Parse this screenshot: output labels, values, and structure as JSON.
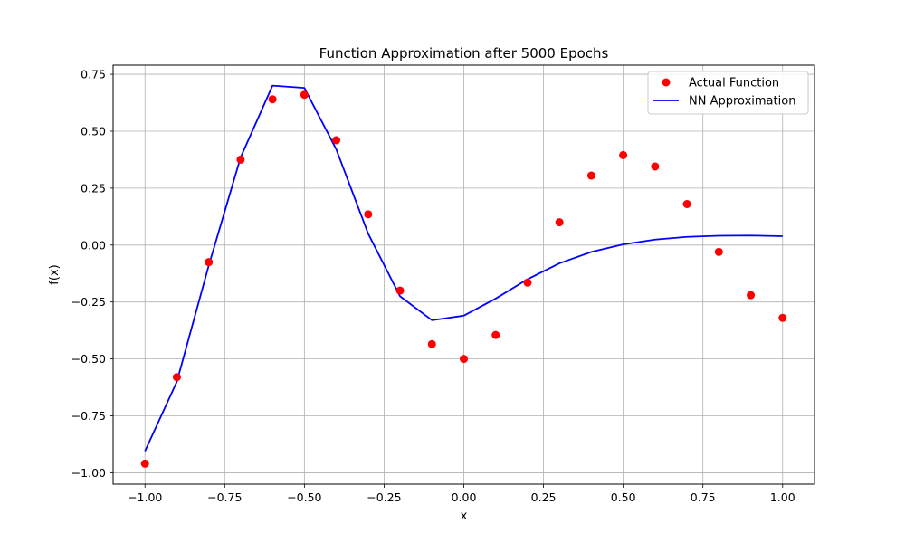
{
  "chart_data": {
    "type": "line",
    "title": "Function Approximation after 5000 Epochs",
    "xlabel": "x",
    "ylabel": "f(x)",
    "xlim": [
      -1.1,
      1.1
    ],
    "ylim": [
      -1.05,
      0.79
    ],
    "grid": true,
    "legend_position": "top-right",
    "x_ticks": [
      -1.0,
      -0.75,
      -0.5,
      -0.25,
      0.0,
      0.25,
      0.5,
      0.75,
      1.0
    ],
    "x_tick_labels": [
      "−1.00",
      "−0.75",
      "−0.50",
      "−0.25",
      "0.00",
      "0.25",
      "0.50",
      "0.75",
      "1.00"
    ],
    "y_ticks": [
      0.75,
      0.5,
      0.25,
      0.0,
      -0.25,
      -0.5,
      -0.75,
      -1.0
    ],
    "y_tick_labels": [
      "0.75",
      "0.50",
      "0.25",
      "0.00",
      "−0.25",
      "−0.50",
      "−0.75",
      "−1.00"
    ],
    "series": [
      {
        "name": "Actual Function",
        "kind": "scatter",
        "color": "#ff0000",
        "x": [
          -1.0,
          -0.9,
          -0.8,
          -0.7,
          -0.6,
          -0.5,
          -0.4,
          -0.3,
          -0.2,
          -0.1,
          0.0,
          0.1,
          0.2,
          0.3,
          0.4,
          0.5,
          0.6,
          0.7,
          0.8,
          0.9,
          1.0
        ],
        "y": [
          -0.96,
          -0.58,
          -0.075,
          0.375,
          0.64,
          0.66,
          0.46,
          0.135,
          -0.2,
          -0.435,
          -0.5,
          -0.395,
          -0.165,
          0.1,
          0.305,
          0.395,
          0.345,
          0.18,
          -0.03,
          -0.22,
          -0.32
        ]
      },
      {
        "name": "NN Approximation",
        "kind": "line",
        "color": "#0000ff",
        "x": [
          -1.0,
          -0.9,
          -0.8,
          -0.7,
          -0.6,
          -0.5,
          -0.4,
          -0.3,
          -0.2,
          -0.1,
          0.0,
          0.1,
          0.2,
          0.3,
          0.4,
          0.5,
          0.6,
          0.7,
          0.8,
          0.9,
          1.0
        ],
        "y": [
          -0.905,
          -0.6,
          -0.09,
          0.385,
          0.7,
          0.69,
          0.42,
          0.05,
          -0.225,
          -0.33,
          -0.31,
          -0.235,
          -0.15,
          -0.08,
          -0.03,
          0.003,
          0.024,
          0.036,
          0.041,
          0.042,
          0.039
        ]
      }
    ]
  }
}
